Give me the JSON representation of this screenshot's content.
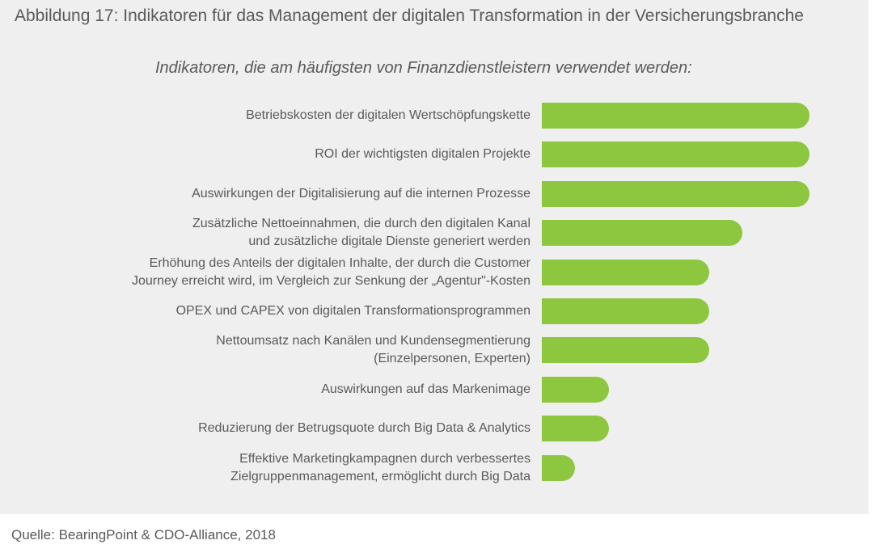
{
  "figure": {
    "title": "Abbildung 17: Indikatoren für das Management der digitalen Transformation in der Versicherungsbranche",
    "source": "Quelle: BearingPoint & CDO-Alliance, 2018"
  },
  "chart_data": {
    "type": "bar",
    "orientation": "horizontal",
    "title": "Indikatoren, die am häufigsten von Finanzdienstleistern verwendet werden:",
    "xlabel": "",
    "ylabel": "",
    "axis_visible": false,
    "grid": false,
    "bar_color": "#8dc63f",
    "background_color": "#efefef",
    "xlim": [
      0,
      8
    ],
    "categories": [
      [
        "Betriebskosten der digitalen Wertschöpfungskette"
      ],
      [
        "ROI der wichtigsten digitalen Projekte"
      ],
      [
        "Auswirkungen der Digitalisierung auf die internen Prozesse"
      ],
      [
        "Zusätzliche Nettoeinnahmen, die durch den digitalen Kanal",
        "und zusätzliche digitale Dienste generiert werden"
      ],
      [
        "Erhöhung des Anteils der digitalen Inhalte, der durch die Customer",
        "Journey erreicht wird, im Vergleich zur Senkung der „Agentur\"-Kosten"
      ],
      [
        "OPEX und CAPEX von digitalen Transformationsprogrammen"
      ],
      [
        "Nettoumsatz nach Kanälen und Kundensegmentierung",
        "(Einzelpersonen, Experten)"
      ],
      [
        "Auswirkungen auf das Markenimage"
      ],
      [
        "Reduzierung der Betrugsquote durch Big Data & Analytics"
      ],
      [
        "Effektive Marketingkampagnen durch verbessertes",
        "Zielgruppenmanagement, ermöglicht durch Big Data"
      ]
    ],
    "values": [
      8,
      8,
      8,
      6,
      5,
      5,
      5,
      2,
      2,
      1
    ]
  }
}
